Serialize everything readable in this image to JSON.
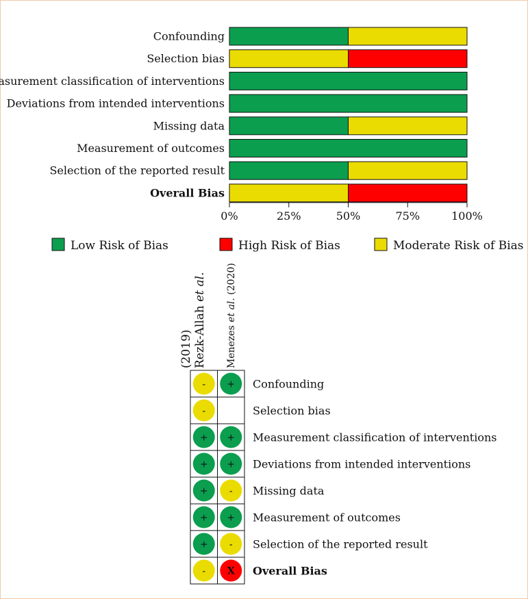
{
  "chart_data": [
    {
      "type": "bar",
      "stacked": true,
      "orientation": "horizontal",
      "categories": [
        "Confounding",
        "Selection bias",
        "Measurement classification of interventions",
        "Deviations from intended interventions",
        "Missing data",
        "Measurement of outcomes",
        "Selection of the reported result",
        "Overall Bias"
      ],
      "bold_categories": [
        "Overall Bias"
      ],
      "series": [
        {
          "name": "Low Risk of Bias",
          "color": "#0b9e4f",
          "values": [
            50,
            0,
            100,
            100,
            50,
            100,
            50,
            0
          ]
        },
        {
          "name": "Moderate Risk of Bias",
          "color": "#eadc00",
          "values": [
            50,
            50,
            0,
            0,
            50,
            0,
            50,
            50
          ]
        },
        {
          "name": "High Risk of Bias",
          "color": "#ff0000",
          "values": [
            0,
            50,
            0,
            0,
            0,
            0,
            0,
            50
          ]
        }
      ],
      "xlim": [
        0,
        100
      ],
      "xticks": [
        "0%",
        "25%",
        "50%",
        "75%",
        "100%"
      ],
      "legend": [
        {
          "label": "Low Risk of Bias",
          "color": "#0b9e4f"
        },
        {
          "label": "High Risk of Bias",
          "color": "#ff0000"
        },
        {
          "label": "Moderate Risk of Bias",
          "color": "#eadc00"
        }
      ],
      "legend_position": "bottom"
    },
    {
      "type": "table",
      "studies": [
        {
          "name": "Rezk-Allah",
          "suffix_italic": "et al.",
          "year": "(2019)"
        },
        {
          "name": "Menezes",
          "suffix_italic": "et al.",
          "year": "(2020)"
        }
      ],
      "domains": [
        "Confounding",
        "Selection bias",
        "Measurement classification of interventions",
        "Deviations from intended interventions",
        "Missing data",
        "Measurement of outcomes",
        "Selection of the reported result",
        "Overall Bias"
      ],
      "judgements": [
        [
          "-",
          "+"
        ],
        [
          "-",
          ""
        ],
        [
          "+",
          "+"
        ],
        [
          "+",
          "+"
        ],
        [
          "+",
          "-"
        ],
        [
          "+",
          "+"
        ],
        [
          "+",
          "-"
        ],
        [
          "-",
          "X"
        ]
      ],
      "colors": {
        "+": "#0b9e4f",
        "-": "#eadc00",
        "X": "#ff0000"
      }
    }
  ]
}
